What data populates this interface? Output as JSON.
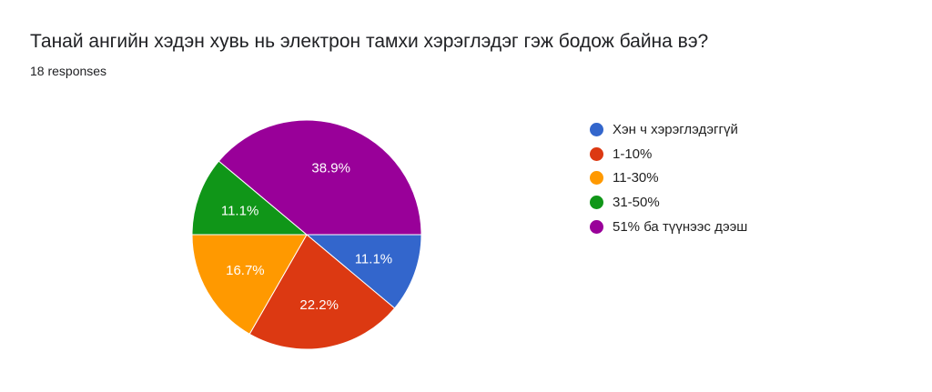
{
  "header": {
    "question": "Танай ангийн хэдэн хувь нь электрон тамхи хэрэглэдэг гэж бодож байна вэ?",
    "responses": "18 responses"
  },
  "chart_data": {
    "type": "pie",
    "title": "Танай ангийн хэдэн хувь нь электрон тамхи хэрэглэдэг гэж бодож байна вэ?",
    "subtitle": "18 responses",
    "categories": [
      "Хэн ч хэрэглэдэггүй",
      "1-10%",
      "11-30%",
      "31-50%",
      "51% ба түүнээс дээш"
    ],
    "values": [
      11.1,
      22.2,
      16.7,
      11.1,
      38.9
    ],
    "labels": [
      "11.1%",
      "22.2%",
      "16.7%",
      "11.1%",
      "38.9%"
    ],
    "colors": [
      "#3366cc",
      "#dc3912",
      "#ff9900",
      "#109618",
      "#990099"
    ],
    "legend_position": "right"
  }
}
